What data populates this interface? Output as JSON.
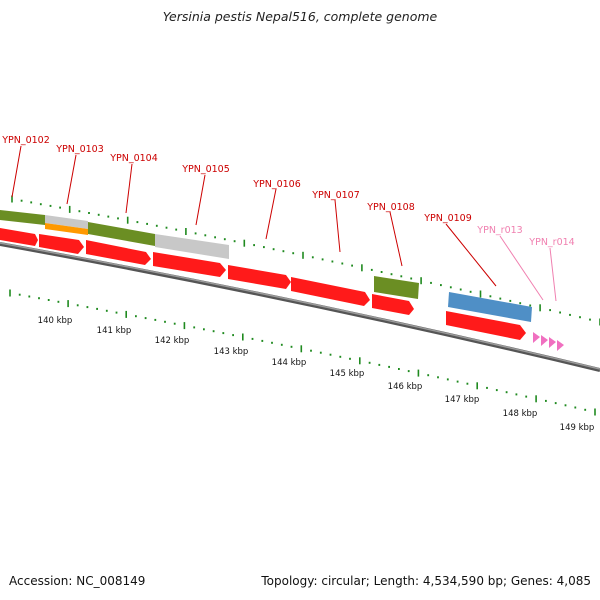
{
  "title": "Yersinia pestis Nepal516, complete genome",
  "footer": {
    "accession": "Accession: NC_008149",
    "summary": "Topology: circular; Length: 4,534,590 bp; Genes: 4,085"
  },
  "colors": {
    "cds": "#ff1a1a",
    "gene_label": "#cc0000",
    "rna_label": "#f080b0",
    "trna": "#f070c0",
    "backbone": "#888888",
    "tick": "#1f8a1f",
    "feature_green": "#6b8e23",
    "feature_orange": "#ff9900",
    "feature_gray": "#c8c8c8",
    "feature_blue": "#4f8fc6"
  },
  "gene_labels": [
    "YPN_0102",
    "YPN_0103",
    "YPN_0104",
    "YPN_0105",
    "YPN_0106",
    "YPN_0107",
    "YPN_0108",
    "YPN_0109"
  ],
  "rna_labels": [
    "YPN_r013",
    "YPN_r014"
  ],
  "scale_labels": [
    "140 kbp",
    "141 kbp",
    "142 kbp",
    "143 kbp",
    "144 kbp",
    "145 kbp",
    "146 kbp",
    "147 kbp",
    "148 kbp",
    "149 kbp"
  ]
}
